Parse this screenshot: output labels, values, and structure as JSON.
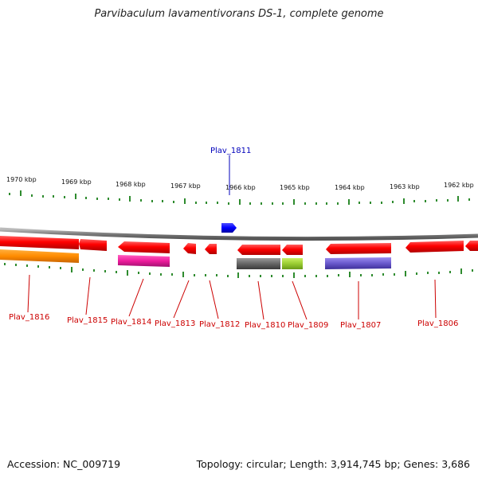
{
  "title": "Parvibaculum lavamentivorans DS-1, complete genome",
  "footer": {
    "accession": "Accession: NC_009719",
    "topology": "Topology: circular; Length: 3,914,745 bp; Genes: 3,686"
  },
  "scale": {
    "ticks": [
      "1970 kbp",
      "1969 kbp",
      "1968 kbp",
      "1967 kbp",
      "1966 kbp",
      "1965 kbp",
      "1964 kbp",
      "1963 kbp",
      "1962 kbp"
    ]
  },
  "genes": {
    "forward": [
      "Plav_1811"
    ],
    "reverse": [
      "Plav_1816",
      "Plav_1815",
      "Plav_1814",
      "Plav_1813",
      "Plav_1812",
      "Plav_1810",
      "Plav_1809",
      "Plav_1807",
      "Plav_1806"
    ]
  },
  "colors": {
    "gene_red": "#ff0000",
    "gene_blue": "#0000ff",
    "cds_orange": "#ff8c00",
    "cds_magenta": "#ee1c9c",
    "cds_gray": "#666666",
    "cds_lime": "#9acd32",
    "cds_violet": "#6a5acd",
    "tick_green": "#2e8b2e",
    "backbone": "#888888"
  }
}
